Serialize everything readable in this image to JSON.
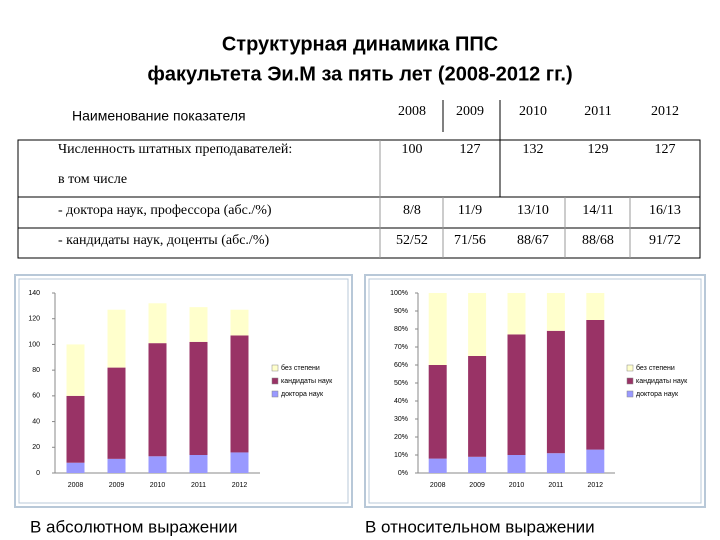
{
  "title": [
    "Структурная динамика ППС",
    "факультета Эи.М за пять лет (2008-2012 гг.)"
  ],
  "table": {
    "header": [
      "Наименование показателя",
      "2008",
      "2009",
      "2010",
      "2011",
      "2012"
    ],
    "rows": [
      [
        "Численность штатных преподавателей:",
        100,
        127,
        132,
        129,
        127
      ],
      [
        "в том числе"
      ],
      [
        "- доктора наук, профессора (абс./%)",
        "8/8",
        "11/9",
        "13/10",
        "14/11",
        "16/13"
      ],
      [
        "- кандидаты наук, доценты (абс./%)",
        "52/52",
        "71/56",
        "88/67",
        "88/68",
        "91/72"
      ]
    ]
  },
  "captions": [
    "В абсолютном выражении",
    "В относительном выражении"
  ],
  "chart_data": [
    {
      "type": "bar",
      "stacked": true,
      "legend": "right",
      "categories": [
        "2008",
        "2009",
        "2010",
        "2011",
        "2012"
      ],
      "series": [
        {
          "name": "доктора наук",
          "color": "#9999ff",
          "values": [
            8,
            11,
            13,
            14,
            16
          ]
        },
        {
          "name": "кандидаты наук",
          "color": "#993366",
          "values": [
            52,
            71,
            88,
            88,
            91
          ]
        },
        {
          "name": "без степени",
          "color": "#ffffcc",
          "values": [
            40,
            45,
            31,
            27,
            20
          ]
        }
      ],
      "ylim": [
        0,
        140
      ],
      "yticks": [
        0,
        20,
        40,
        60,
        80,
        100,
        120,
        140
      ]
    },
    {
      "type": "bar",
      "stacked": true,
      "legend": "right",
      "categories": [
        "2008",
        "2009",
        "2010",
        "2011",
        "2012"
      ],
      "series": [
        {
          "name": "доктора наук",
          "color": "#9999ff",
          "values": [
            8,
            9,
            10,
            11,
            13
          ]
        },
        {
          "name": "кандидаты наук",
          "color": "#993366",
          "values": [
            52,
            56,
            67,
            68,
            72
          ]
        },
        {
          "name": "без степени",
          "color": "#ffffcc",
          "values": [
            40,
            35,
            23,
            21,
            15
          ]
        }
      ],
      "ylim": [
        0,
        100
      ],
      "yticks": [
        {
          "value": 0,
          "label": "0%"
        },
        {
          "value": 10,
          "label": "10%"
        },
        {
          "value": 20,
          "label": "20%"
        },
        {
          "value": 30,
          "label": "30%"
        },
        {
          "value": 40,
          "label": "40%"
        },
        {
          "value": 50,
          "label": "50%"
        },
        {
          "value": 60,
          "label": "60%"
        },
        {
          "value": 70,
          "label": "70%"
        },
        {
          "value": 80,
          "label": "80%"
        },
        {
          "value": 90,
          "label": "90%"
        },
        {
          "value": 100,
          "label": "100%"
        }
      ]
    }
  ]
}
